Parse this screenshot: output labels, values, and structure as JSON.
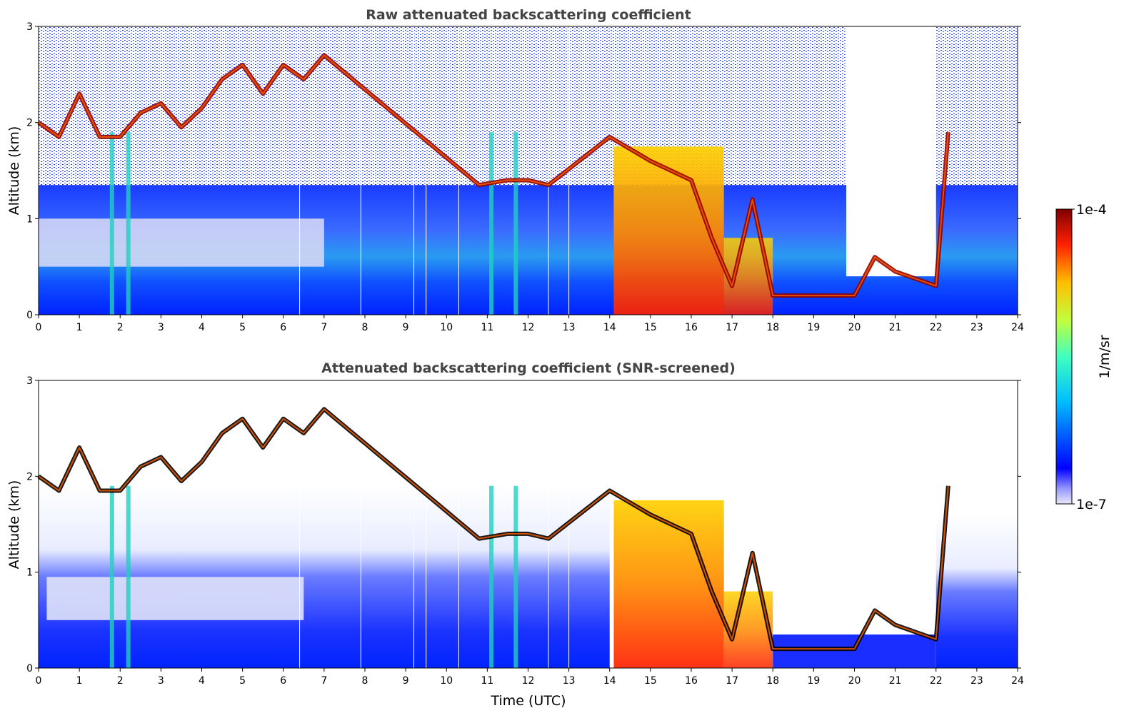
{
  "chart_data": [
    {
      "type": "heatmap",
      "title": "Raw attenuated backscattering coefficient",
      "xlabel": "",
      "ylabel": "Altitude (km)",
      "xlim": [
        0,
        24
      ],
      "ylim": [
        0,
        3
      ],
      "xticks": [
        "0",
        "1",
        "2",
        "3",
        "4",
        "5",
        "6",
        "7",
        "8",
        "9",
        "10",
        "11",
        "12",
        "13",
        "14",
        "15",
        "16",
        "17",
        "18",
        "19",
        "20",
        "21",
        "22",
        "23",
        "24"
      ],
      "yticks": [
        "0",
        "1",
        "2",
        "3"
      ],
      "layer_height_km": [
        [
          0,
          2.0
        ],
        [
          0.5,
          1.85
        ],
        [
          1,
          2.3
        ],
        [
          1.5,
          1.85
        ],
        [
          2,
          1.85
        ],
        [
          2.5,
          2.1
        ],
        [
          3,
          2.2
        ],
        [
          3.5,
          1.95
        ],
        [
          4,
          2.15
        ],
        [
          4.5,
          2.45
        ],
        [
          5,
          2.6
        ],
        [
          5.5,
          2.3
        ],
        [
          6,
          2.6
        ],
        [
          6.5,
          2.45
        ],
        [
          7,
          2.7
        ],
        [
          10.8,
          1.35
        ],
        [
          11.5,
          1.4
        ],
        [
          12,
          1.4
        ],
        [
          12.5,
          1.35
        ],
        [
          14,
          1.85
        ],
        [
          15,
          1.6
        ],
        [
          16,
          1.4
        ],
        [
          16.5,
          0.8
        ],
        [
          17,
          0.3
        ],
        [
          17.5,
          1.2
        ],
        [
          18,
          0.2
        ],
        [
          19,
          0.2
        ],
        [
          20,
          0.2
        ],
        [
          20.5,
          0.6
        ],
        [
          21,
          0.45
        ],
        [
          22,
          0.3
        ],
        [
          22.3,
          1.9
        ]
      ],
      "colorbar": {
        "min_label": "1e-7",
        "max_label": "1e-4",
        "label": "1/m/sr",
        "scale": "log"
      }
    },
    {
      "type": "heatmap",
      "title": "Attenuated backscattering coefficient (SNR-screened)",
      "xlabel": "Time (UTC)",
      "ylabel": "Altitude (km)",
      "xlim": [
        0,
        24
      ],
      "ylim": [
        0,
        3
      ],
      "xticks": [
        "0",
        "1",
        "2",
        "3",
        "4",
        "5",
        "6",
        "7",
        "8",
        "9",
        "10",
        "11",
        "12",
        "13",
        "14",
        "15",
        "16",
        "17",
        "18",
        "19",
        "20",
        "21",
        "22",
        "23",
        "24"
      ],
      "yticks": [
        "0",
        "1",
        "2",
        "3"
      ],
      "colorbar": {
        "min_label": "1e-7",
        "max_label": "1e-4",
        "label": "1/m/sr",
        "scale": "log"
      }
    }
  ],
  "colorbar": {
    "max_label": "1e-4",
    "min_label": "1e-7",
    "label": "1/m/sr"
  },
  "colors": {
    "background_low": "#0000ff",
    "high": "#800000",
    "screened": "#ffffff"
  }
}
